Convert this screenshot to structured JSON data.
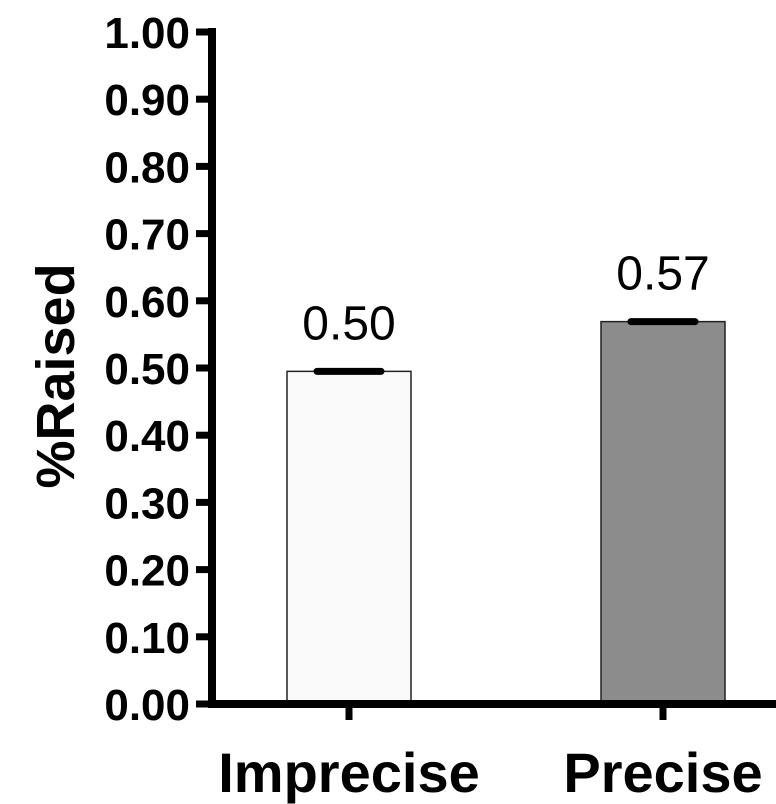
{
  "chart_data": {
    "type": "bar",
    "categories": [
      "Imprecise",
      "Precise"
    ],
    "values": [
      0.495,
      0.569
    ],
    "data_labels": [
      "0.50",
      "0.57"
    ],
    "error": [
      0.003,
      0.003
    ],
    "title": "",
    "xlabel": "",
    "ylabel": "%Raised",
    "ylim": [
      0,
      1
    ],
    "yticks": [
      0.0,
      0.1,
      0.2,
      0.3,
      0.4,
      0.5,
      0.6,
      0.7,
      0.8,
      0.9,
      1.0
    ],
    "ytick_labels": [
      "0.00",
      "0.10",
      "0.20",
      "0.30",
      "0.40",
      "0.50",
      "0.60",
      "0.70",
      "0.80",
      "0.90",
      "1.00"
    ],
    "bar_colors": [
      "#fafafa",
      "#8c8c8c"
    ],
    "grid": false,
    "legend": "none"
  }
}
